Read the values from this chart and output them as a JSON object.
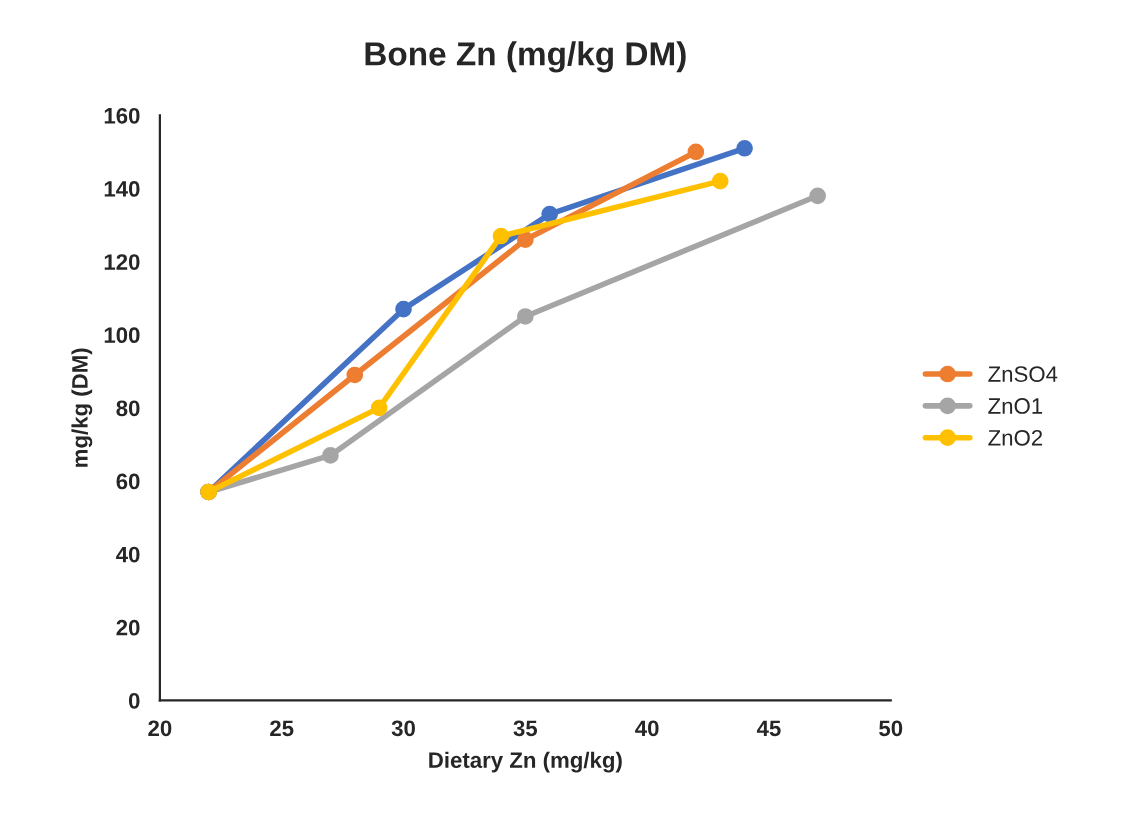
{
  "chart_data": {
    "type": "line",
    "title": "Bone Zn (mg/kg DM)",
    "xlabel": "Dietary Zn (mg/kg)",
    "ylabel": "mg/kg (DM)",
    "xlim": [
      20,
      50
    ],
    "xticks": [
      20,
      25,
      30,
      35,
      40,
      45,
      50
    ],
    "ylim": [
      0,
      160
    ],
    "yticks": [
      0,
      20,
      40,
      60,
      80,
      100,
      120,
      140,
      160
    ],
    "grid": false,
    "legend": "right",
    "marker": "circle",
    "line_style": "solid",
    "series": [
      {
        "color": "#4472c4",
        "x": [
          22,
          30,
          36,
          44
        ],
        "values": [
          57,
          107,
          133,
          151
        ]
      },
      {
        "name": "ZnSO4",
        "color": "#ed7d31",
        "x": [
          22,
          28,
          35,
          42
        ],
        "values": [
          57,
          89,
          126,
          150
        ]
      },
      {
        "name": "ZnO1",
        "color": "#a5a5a5",
        "x": [
          22,
          27,
          35,
          47
        ],
        "values": [
          57,
          67,
          105,
          138
        ]
      },
      {
        "name": "ZnO2",
        "color": "#ffc000",
        "x": [
          22,
          29,
          34,
          43
        ],
        "values": [
          57,
          80,
          127,
          142
        ]
      }
    ]
  }
}
